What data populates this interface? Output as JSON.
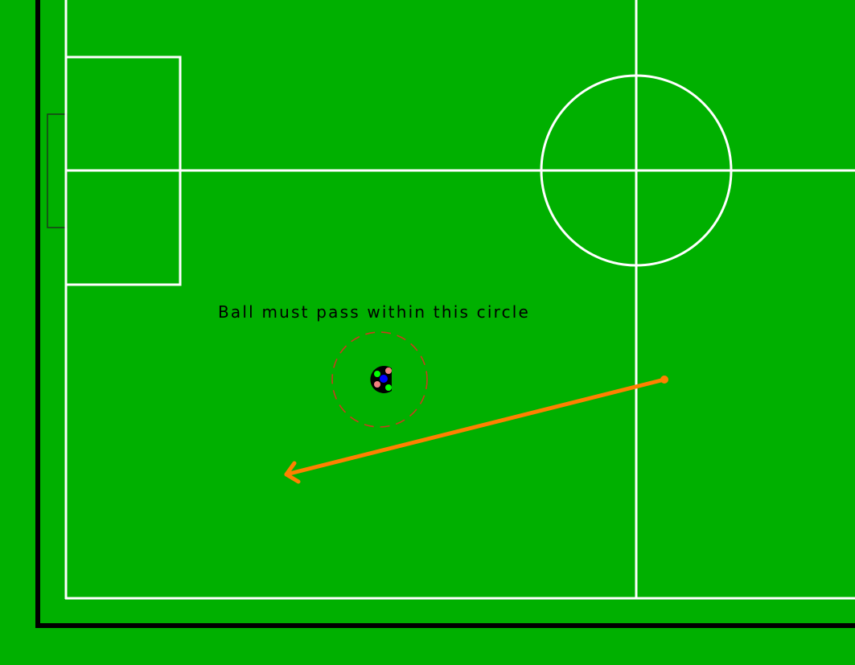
{
  "scene": {
    "annotation_text": "Ball must pass within this circle"
  },
  "colors": {
    "field": "#00b000",
    "field_lines": "#ffffff",
    "outer_border": "#000000",
    "goal_outline": "#1a3a1a",
    "target_circle": "#c83c1e",
    "pass_arrow": "#ff8000",
    "robot_body": "#000000",
    "robot_center": "#0000ff",
    "robot_marker_pink": "#f08080",
    "robot_marker_green": "#00ff00"
  },
  "icons": {
    "robot": "robot-icon",
    "pass_direction": "arrow-icon"
  }
}
